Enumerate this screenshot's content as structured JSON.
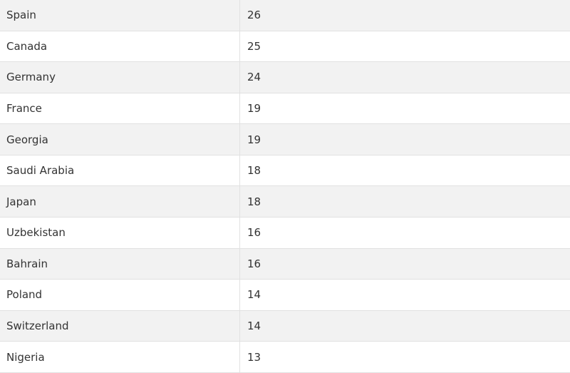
{
  "table": {
    "rows": [
      [
        "Spain",
        26
      ],
      [
        "Canada",
        25
      ],
      [
        "Germany",
        24
      ],
      [
        "France",
        19
      ],
      [
        "Georgia",
        19
      ],
      [
        "Saudi Arabia",
        18
      ],
      [
        "Japan",
        18
      ],
      [
        "Uzbekistan",
        16
      ],
      [
        "Bahrain",
        16
      ],
      [
        "Poland",
        14
      ],
      [
        "Switzerland",
        14
      ],
      [
        "Nigeria",
        13
      ]
    ]
  }
}
